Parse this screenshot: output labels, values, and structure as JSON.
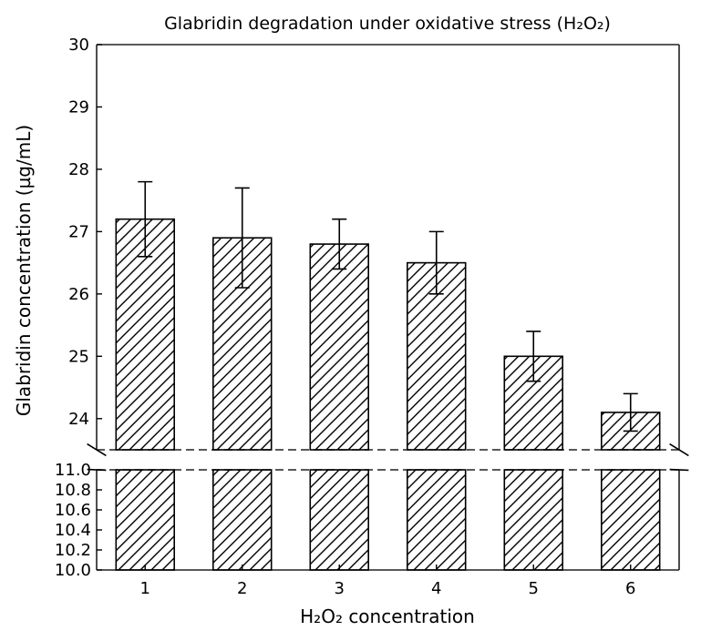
{
  "chart_data": {
    "type": "bar",
    "title": "Glabridin degradation under oxidative stress (H₂O₂)",
    "xlabel": "H₂O₂ concentration",
    "ylabel": "Glabridin concentration (µg/mL)",
    "categories": [
      "1",
      "2",
      "3",
      "4",
      "5",
      "6"
    ],
    "values": [
      27.2,
      26.9,
      26.8,
      26.5,
      25.0,
      24.1
    ],
    "errors": [
      0.6,
      0.8,
      0.4,
      0.5,
      0.4,
      0.3
    ],
    "bar_style": "hatched",
    "broken_axis": true,
    "upper_ylim": [
      23.5,
      30
    ],
    "lower_ylim": [
      10.0,
      11.0
    ],
    "upper_yticks": [
      "24",
      "25",
      "26",
      "27",
      "28",
      "29",
      "30"
    ],
    "lower_yticks": [
      "10.0",
      "10.2",
      "10.4",
      "10.6",
      "10.8",
      "11.0"
    ],
    "grid": false,
    "legend": "none"
  }
}
